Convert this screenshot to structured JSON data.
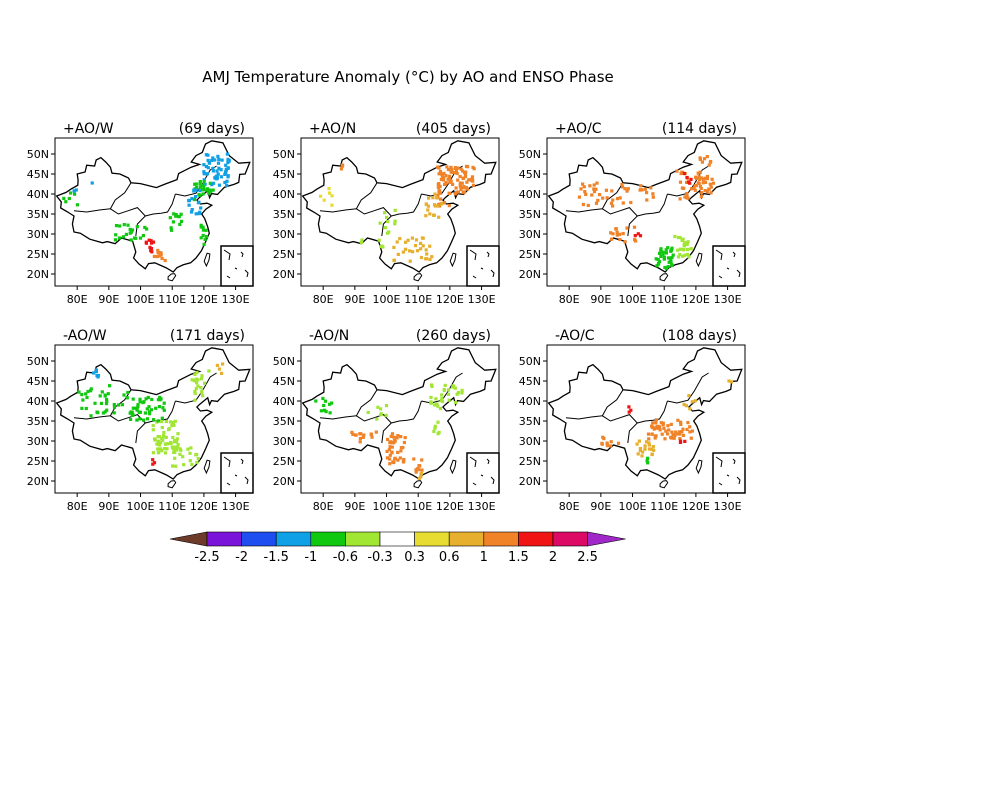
{
  "title": "AMJ Temperature Anomaly (°C) by AO and ENSO Phase",
  "panels": [
    {
      "phase": "+AO/W",
      "days": "(69 days)"
    },
    {
      "phase": "+AO/N",
      "days": "(405 days)"
    },
    {
      "phase": "+AO/C",
      "days": "(114 days)"
    },
    {
      "phase": "-AO/W",
      "days": "(171 days)"
    },
    {
      "phase": "-AO/N",
      "days": "(260 days)"
    },
    {
      "phase": "-AO/C",
      "days": "(108 days)"
    }
  ],
  "axes": {
    "lat_labels": [
      "50N",
      "45N",
      "40N",
      "35N",
      "30N",
      "25N",
      "20N"
    ],
    "lon_labels": [
      "80E",
      "90E",
      "100E",
      "110E",
      "120E",
      "130E"
    ]
  },
  "colorbar": {
    "ticks": [
      "-2.5",
      "-2",
      "-1.5",
      "-1",
      "-0.6",
      "-0.3",
      "0.3",
      "0.6",
      "1",
      "1.5",
      "2",
      "2.5"
    ],
    "colors": [
      "#6e3b2a",
      "#7a14d8",
      "#1e4df0",
      "#0fa0e6",
      "#10c810",
      "#a0e632",
      "#ffffff",
      "#e6dc32",
      "#e6af2d",
      "#f08228",
      "#f01414",
      "#dc0a64",
      "#a028c8"
    ]
  }
}
